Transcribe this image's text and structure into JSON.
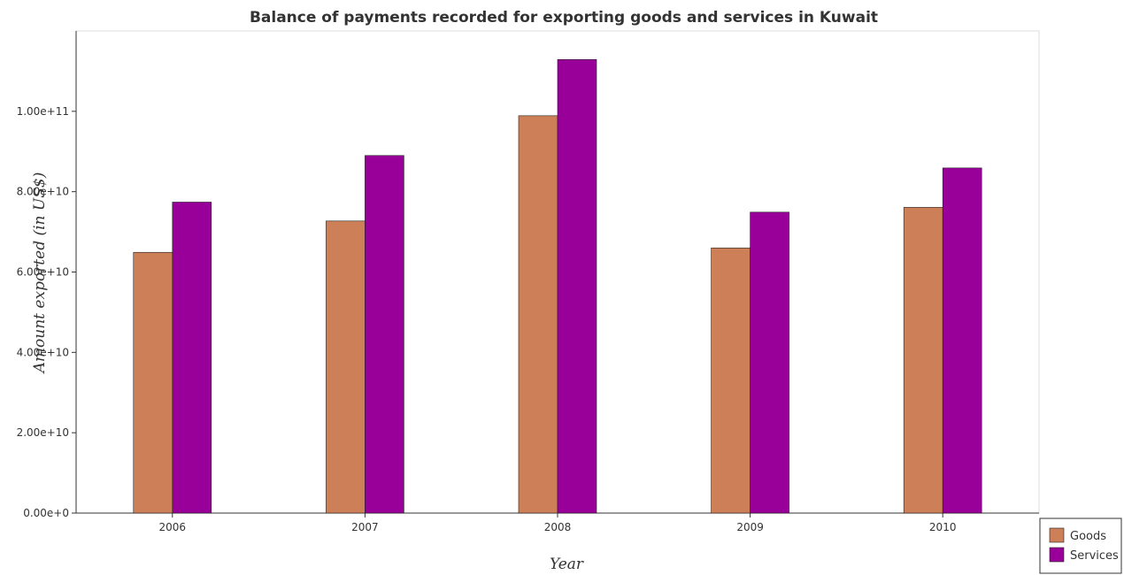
{
  "chart_data": {
    "type": "bar",
    "title": "Balance of payments recorded for exporting goods and services in Kuwait",
    "xlabel": "Year",
    "ylabel": "Amount exported (in US$)",
    "categories": [
      "2006",
      "2007",
      "2008",
      "2009",
      "2010"
    ],
    "series": [
      {
        "name": "Goods",
        "color": "#cd7f57",
        "values": [
          64900000000,
          72700000000,
          98900000000,
          66000000000,
          76100000000
        ]
      },
      {
        "name": "Services",
        "color": "#990099",
        "values": [
          77400000000,
          89000000000,
          112900000000,
          74900000000,
          85900000000
        ]
      }
    ],
    "ylim": [
      0,
      120000000000
    ],
    "yticks": [
      0,
      20000000000,
      40000000000,
      60000000000,
      80000000000,
      100000000000
    ],
    "ytick_labels": [
      "0.00e+0",
      "2.00e+10",
      "4.00e+10",
      "6.00e+10",
      "8.00e+10",
      "1.00e+11"
    ],
    "grid": false,
    "legend_position": "bottom-right"
  }
}
